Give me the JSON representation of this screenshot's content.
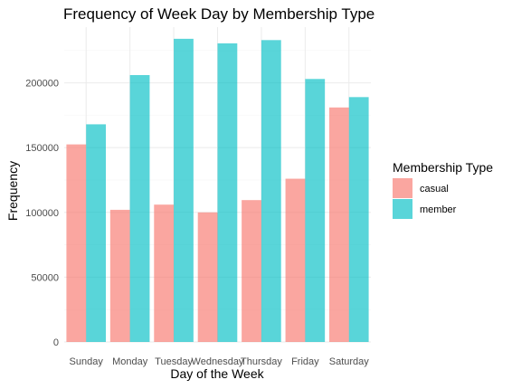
{
  "chart_data": {
    "type": "bar",
    "title": "Frequency of Week Day by Membership Type",
    "xlabel": "Day of the Week",
    "ylabel": "Frequency",
    "categories": [
      "Sunday",
      "Monday",
      "Tuesday",
      "Wednesday",
      "Thursday",
      "Friday",
      "Saturday"
    ],
    "series": [
      {
        "name": "casual",
        "color": "#F8766D",
        "values": [
          152500,
          102000,
          106000,
          100000,
          109500,
          126000,
          181000
        ]
      },
      {
        "name": "member",
        "color": "#00BFC4",
        "values": [
          168000,
          206000,
          234000,
          230500,
          233000,
          203000,
          189000
        ]
      }
    ],
    "ylim": [
      0,
      243000
    ],
    "yticks": [
      0,
      50000,
      100000,
      150000,
      200000
    ],
    "ytick_labels": [
      "0",
      "50000",
      "100000",
      "150000",
      "200000"
    ],
    "grid": true,
    "bar_opacity": 0.65,
    "legend": {
      "title": "Membership Type",
      "position": "right"
    }
  }
}
